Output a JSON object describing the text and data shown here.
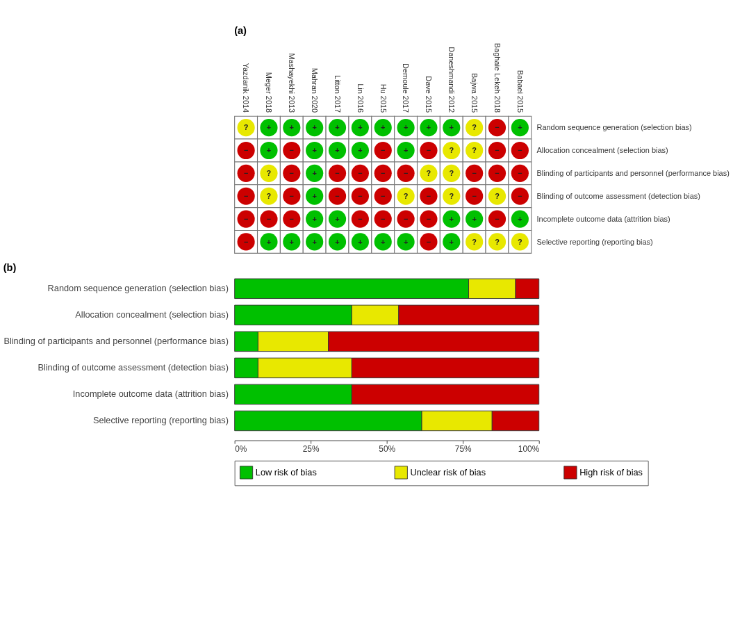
{
  "chart_data": [
    {
      "type": "heatmap",
      "title": "(a)",
      "categories": [
        "Yazdanik 2014",
        "Meger 2018",
        "Mashayekhi 2013",
        "Mahran 2020",
        "Litton 2017",
        "Lin 2016",
        "Hu 2015",
        "Demoule 2017",
        "Dave 2015",
        "Daneshmandi 2012",
        "Bajwa 2015",
        "Baghaie Lekeh 2018",
        "Babaei 2015"
      ],
      "y_categories": [
        "Random sequence generation (selection bias)",
        "Allocation concealment (selection bias)",
        "Blinding of participants and personnel (performance bias)",
        "Blinding of outcome assessment (detection bias)",
        "Incomplete outcome data (attrition bias)",
        "Selective reporting (reporting bias)"
      ],
      "colors": [
        "#e8e800",
        "#00c000",
        "#cc0000"
      ],
      "cells": [
        [
          "?",
          "+",
          "+",
          "+",
          "+",
          "+",
          "+",
          "+",
          "+",
          "+",
          "?",
          "−",
          "+"
        ],
        [
          "−",
          "+",
          "−",
          "+",
          "+",
          "+",
          "−",
          "+",
          "−",
          "?",
          "?",
          "−",
          "−"
        ],
        [
          "−",
          "?",
          "−",
          "+",
          "−",
          "−",
          "−",
          "−",
          "?",
          "?",
          "−",
          "−",
          "−"
        ],
        [
          "−",
          "?",
          "−",
          "+",
          "−",
          "−",
          "−",
          "?",
          "−",
          "?",
          "−",
          "?",
          "−"
        ],
        [
          "−",
          "−",
          "−",
          "+",
          "+",
          "−",
          "−",
          "−",
          "−",
          "+",
          "+",
          "−",
          "+"
        ],
        [
          "−",
          "+",
          "+",
          "+",
          "+",
          "+",
          "+",
          "+",
          "−",
          "+",
          "?",
          "?",
          "?"
        ]
      ]
    },
    {
      "type": "bar",
      "title": "(b)",
      "orientation": "horizontal",
      "stacked": true,
      "categories": [
        "Random sequence generation (selection bias)",
        "Allocation concealment (selection bias)",
        "Blinding of participants and personnel (performance bias)",
        "Blinding of outcome assessment (detection bias)",
        "Incomplete outcome data (attrition bias)",
        "Selective reporting (reporting bias)"
      ],
      "series": [
        {
          "name": "Low risk of bias",
          "color": "#00c000",
          "values": [
            76.9,
            38.5,
            7.7,
            7.7,
            38.5,
            61.5
          ]
        },
        {
          "name": "Unclear risk of bias",
          "color": "#e8e800",
          "values": [
            15.4,
            15.4,
            23.1,
            30.8,
            null,
            23.1
          ]
        },
        {
          "name": "High risk of bias",
          "color": "#cc0000",
          "values": [
            7.7,
            46.1,
            69.2,
            61.5,
            61.5,
            15.4
          ]
        }
      ],
      "xlim": [
        0,
        100
      ],
      "xticks": [
        {
          "value": 0,
          "label": "0%"
        },
        {
          "value": 25,
          "label": "25%"
        },
        {
          "value": 50,
          "label": "50%"
        },
        {
          "value": 75,
          "label": "75%"
        },
        {
          "value": 100,
          "label": "100%"
        }
      ],
      "legend": "bottom",
      "grid": false
    }
  ]
}
